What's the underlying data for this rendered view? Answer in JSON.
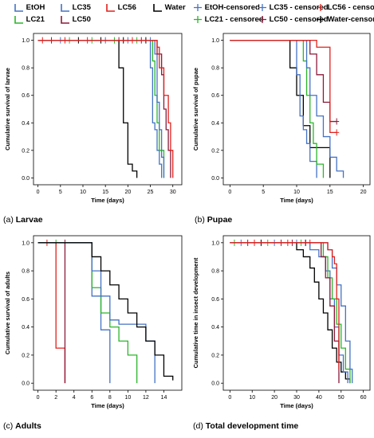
{
  "legend": {
    "items": [
      {
        "name": "EtOH",
        "color": "#4472c4",
        "type": "step"
      },
      {
        "name": "LC35",
        "color": "#4472c4",
        "type": "step"
      },
      {
        "name": "LC56",
        "color": "#e0201b",
        "type": "step"
      },
      {
        "name": "Water",
        "color": "#000000",
        "type": "step"
      },
      {
        "name": "EtOH-censored",
        "color": "#4472c4",
        "type": "cross"
      },
      {
        "name": "LC35 - censored",
        "color": "#4472c4",
        "type": "cross"
      },
      {
        "name": "LC56 - censored",
        "color": "#e0201b",
        "type": "cross"
      },
      {
        "name": "LC21",
        "color": "#2bb52b",
        "type": "step"
      },
      {
        "name": "LC50",
        "color": "#8b1a3a",
        "type": "step"
      },
      {
        "name": "LC21 - censored",
        "color": "#2bb52b",
        "type": "cross"
      },
      {
        "name": "LC50 - censored",
        "color": "#8b1a3a",
        "type": "cross"
      },
      {
        "name": "Water-censored",
        "color": "#000000",
        "type": "cross"
      }
    ]
  },
  "panels": [
    {
      "label_prefix": "(a)",
      "label_name": "Larvae"
    },
    {
      "label_prefix": "(b)",
      "label_name": "Pupae"
    },
    {
      "label_prefix": "(c)",
      "label_name": "Adults"
    },
    {
      "label_prefix": "(d)",
      "label_name": "Total development time"
    }
  ],
  "chart_data": [
    {
      "type": "line",
      "title": "(a) Larvae",
      "xlabel": "Time (days)",
      "ylabel": "Cumulative survival of larvae",
      "xlim": [
        -1,
        32
      ],
      "ylim": [
        -0.05,
        1.05
      ],
      "xticks": [
        0,
        5,
        10,
        15,
        20,
        25,
        30
      ],
      "yticks": [
        0.0,
        0.2,
        0.4,
        0.6,
        0.8,
        1.0
      ],
      "censored_marks": [
        1,
        3,
        5,
        6,
        7,
        9,
        11,
        12,
        14,
        15,
        17,
        18,
        19,
        20,
        21,
        22,
        23,
        24,
        25
      ],
      "series": [
        {
          "name": "Water",
          "color": "#000000",
          "x": [
            0,
            18,
            19,
            20,
            21,
            22
          ],
          "y": [
            1.0,
            0.8,
            0.4,
            0.1,
            0.05,
            0.0
          ]
        },
        {
          "name": "EtOH",
          "color": "#4472c4",
          "x": [
            0,
            25,
            25.5,
            26,
            26.5,
            27,
            27.5
          ],
          "y": [
            1.0,
            0.8,
            0.4,
            0.35,
            0.2,
            0.1,
            0.0
          ]
        },
        {
          "name": "LC21",
          "color": "#2bb52b",
          "x": [
            0,
            25.5,
            26,
            26.5,
            27,
            28
          ],
          "y": [
            1.0,
            0.85,
            0.6,
            0.4,
            0.2,
            0.0
          ]
        },
        {
          "name": "LC35",
          "color": "#4472c4",
          "x": [
            0,
            26,
            26.5,
            27,
            27.5,
            28
          ],
          "y": [
            1.0,
            0.9,
            0.55,
            0.35,
            0.15,
            0.0
          ]
        },
        {
          "name": "LC50",
          "color": "#8b1a3a",
          "x": [
            0,
            26.5,
            27.5,
            28,
            28.5,
            29,
            29.5
          ],
          "y": [
            1.0,
            0.9,
            0.75,
            0.5,
            0.35,
            0.2,
            0.0
          ]
        },
        {
          "name": "LC56",
          "color": "#e0201b",
          "x": [
            0,
            26.5,
            27,
            28,
            29,
            29.5,
            30
          ],
          "y": [
            1.0,
            0.95,
            0.8,
            0.6,
            0.4,
            0.2,
            0.0
          ]
        }
      ]
    },
    {
      "type": "line",
      "title": "(b) Pupae",
      "xlabel": "Time (days)",
      "ylabel": "Cumulative survival of pupae",
      "xlim": [
        -1,
        21
      ],
      "ylim": [
        -0.05,
        1.05
      ],
      "xticks": [
        0,
        5,
        10,
        15,
        20
      ],
      "yticks": [
        0.0,
        0.2,
        0.4,
        0.6,
        0.8,
        1.0
      ],
      "censored_marks": [],
      "series": [
        {
          "name": "Water",
          "color": "#000000",
          "x": [
            0,
            9,
            10,
            11,
            12,
            14,
            15
          ],
          "y": [
            1.0,
            0.8,
            0.6,
            0.38,
            0.22,
            0.22,
            0.0
          ]
        },
        {
          "name": "EtOH",
          "color": "#4472c4",
          "x": [
            0,
            10,
            10.5,
            11,
            11.5,
            12,
            13
          ],
          "y": [
            1.0,
            0.75,
            0.45,
            0.35,
            0.25,
            0.12,
            0.0
          ]
        },
        {
          "name": "LC21",
          "color": "#2bb52b",
          "x": [
            0,
            11,
            11.5,
            12,
            12.5,
            13,
            14
          ],
          "y": [
            1.0,
            0.85,
            0.6,
            0.4,
            0.25,
            0.1,
            0.0
          ]
        },
        {
          "name": "LC35",
          "color": "#4472c4",
          "x": [
            0,
            11.5,
            12,
            13,
            14,
            15,
            16,
            17
          ],
          "y": [
            1.0,
            0.8,
            0.6,
            0.45,
            0.3,
            0.15,
            0.05,
            0.0
          ]
        },
        {
          "name": "LC50",
          "color": "#8b1a3a",
          "x": [
            0,
            12,
            13,
            14,
            15,
            16
          ],
          "y": [
            1.0,
            0.9,
            0.75,
            0.55,
            0.41,
            0.41
          ]
        },
        {
          "name": "LC56",
          "color": "#e0201b",
          "x": [
            0,
            13,
            15,
            16
          ],
          "y": [
            1.0,
            0.95,
            0.33,
            0.33
          ]
        }
      ]
    },
    {
      "type": "line",
      "title": "(c) Adults",
      "xlabel": "Time (days)",
      "ylabel": "Cumulative survival of adults",
      "xlim": [
        -0.5,
        16
      ],
      "ylim": [
        -0.05,
        1.05
      ],
      "xticks": [
        0,
        2,
        4,
        6,
        8,
        10,
        12,
        14
      ],
      "yticks": [
        0.0,
        0.2,
        0.4,
        0.6,
        0.8,
        1.0
      ],
      "censored_marks": [
        1,
        2,
        3
      ],
      "series": [
        {
          "name": "LC56",
          "color": "#e0201b",
          "x": [
            0,
            2,
            3
          ],
          "y": [
            1.0,
            0.25,
            0.0
          ]
        },
        {
          "name": "LC50",
          "color": "#8b1a3a",
          "x": [
            0,
            3
          ],
          "y": [
            1.0,
            0.0
          ]
        },
        {
          "name": "EtOH",
          "color": "#4472c4",
          "x": [
            0,
            6,
            7,
            8
          ],
          "y": [
            1.0,
            0.62,
            0.38,
            0.0
          ]
        },
        {
          "name": "LC21",
          "color": "#2bb52b",
          "x": [
            0,
            6,
            7,
            8,
            9,
            10,
            11
          ],
          "y": [
            1.0,
            0.68,
            0.5,
            0.4,
            0.3,
            0.2,
            0.0
          ]
        },
        {
          "name": "LC35",
          "color": "#4472c4",
          "x": [
            0,
            6,
            7,
            8,
            9,
            10,
            12,
            13
          ],
          "y": [
            1.0,
            0.8,
            0.62,
            0.45,
            0.42,
            0.42,
            0.3,
            0.0
          ]
        },
        {
          "name": "Water",
          "color": "#000000",
          "x": [
            0,
            6,
            7,
            8,
            9,
            10,
            11,
            12,
            13,
            14,
            15
          ],
          "y": [
            1.0,
            0.9,
            0.8,
            0.7,
            0.6,
            0.5,
            0.4,
            0.3,
            0.2,
            0.05,
            0.02
          ]
        }
      ]
    },
    {
      "type": "line",
      "title": "(d) Total development time",
      "xlabel": "Time (days)",
      "ylabel": "Cumulative time in insect development",
      "xlim": [
        -3,
        63
      ],
      "ylim": [
        -0.05,
        1.05
      ],
      "xticks": [
        0,
        10,
        20,
        30,
        40,
        50,
        60
      ],
      "yticks": [
        0.0,
        0.2,
        0.4,
        0.6,
        0.8,
        1.0
      ],
      "censored_marks": [
        2,
        5,
        8,
        11,
        14,
        17,
        20,
        23,
        26,
        28,
        30,
        32,
        34,
        36
      ],
      "series": [
        {
          "name": "Water",
          "color": "#000000",
          "x": [
            0,
            30,
            33,
            36,
            38,
            40,
            42,
            44,
            46,
            48,
            50,
            52,
            54
          ],
          "y": [
            1.0,
            0.95,
            0.9,
            0.82,
            0.72,
            0.6,
            0.5,
            0.38,
            0.25,
            0.15,
            0.08,
            0.03,
            0.0
          ]
        },
        {
          "name": "EtOH",
          "color": "#4472c4",
          "x": [
            0,
            36,
            40,
            43,
            45,
            47,
            49,
            51,
            53
          ],
          "y": [
            1.0,
            0.95,
            0.9,
            0.8,
            0.6,
            0.4,
            0.2,
            0.08,
            0.0
          ]
        },
        {
          "name": "LC21",
          "color": "#2bb52b",
          "x": [
            0,
            42,
            44,
            46,
            48,
            50,
            52,
            54
          ],
          "y": [
            1.0,
            0.9,
            0.75,
            0.6,
            0.42,
            0.25,
            0.1,
            0.0
          ]
        },
        {
          "name": "LC35",
          "color": "#4472c4",
          "x": [
            0,
            44,
            46,
            48,
            50,
            52,
            54,
            55
          ],
          "y": [
            1.0,
            0.95,
            0.82,
            0.7,
            0.55,
            0.3,
            0.1,
            0.0
          ]
        },
        {
          "name": "LC50",
          "color": "#8b1a3a",
          "x": [
            0,
            41,
            43,
            45,
            47,
            49
          ],
          "y": [
            1.0,
            0.9,
            0.75,
            0.55,
            0.3,
            0.0
          ]
        },
        {
          "name": "LC56",
          "color": "#e0201b",
          "x": [
            0,
            44,
            46,
            47,
            48,
            49
          ],
          "y": [
            1.0,
            0.95,
            0.9,
            0.85,
            0.6,
            0.1
          ]
        }
      ]
    }
  ]
}
